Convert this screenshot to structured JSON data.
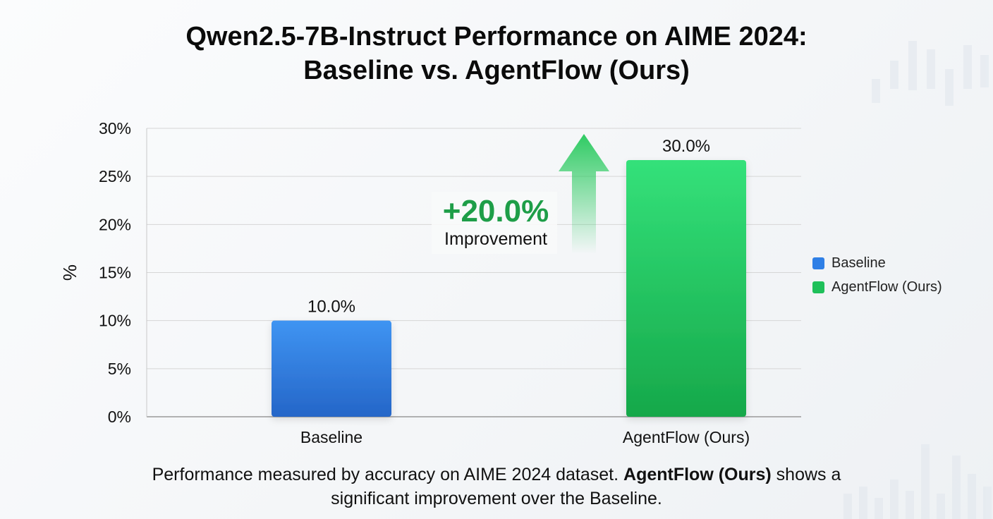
{
  "title": {
    "line1": "Qwen2.5-7B-Instruct Performance on AIME 2024:",
    "line2": "Baseline vs. AgentFlow (Ours)"
  },
  "chart_data": {
    "type": "bar",
    "categories": [
      "Baseline",
      "AgentFlow (Ours)"
    ],
    "values": [
      10.0,
      30.0
    ],
    "data_labels": [
      "10.0%",
      "30.0%"
    ],
    "ylabel": "%",
    "ylim": [
      0,
      30
    ],
    "yticks": [
      0,
      5,
      10,
      15,
      20,
      25,
      30
    ],
    "ytick_labels": [
      "0%",
      "5%",
      "10%",
      "15%",
      "20%",
      "25%",
      "30%"
    ],
    "grid": true,
    "legend": {
      "placement": "right",
      "entries": [
        "Baseline",
        "AgentFlow (Ours)"
      ]
    },
    "colors": [
      "#2f7fe6",
      "#1fc05a"
    ],
    "annotation": {
      "value": "+20.0%",
      "label": "Improvement",
      "color": "#1e9e48"
    }
  },
  "caption": {
    "before": "Performance measured by accuracy on AIME 2024 dataset. ",
    "bold": "AgentFlow (Ours)",
    "after": " shows a",
    "line2": "significant improvement over the Baseline."
  }
}
